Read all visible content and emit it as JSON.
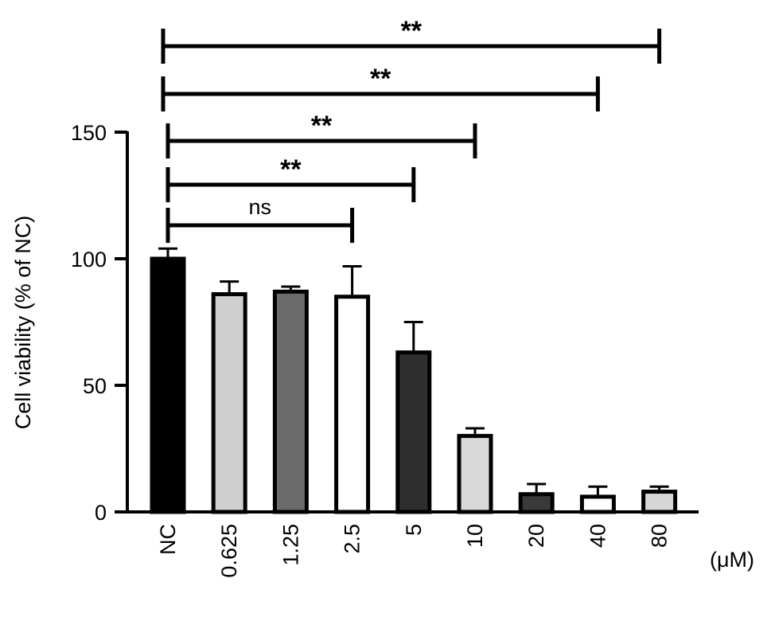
{
  "chart_data": {
    "type": "bar",
    "categories": [
      "NC",
      "0.625",
      "1.25",
      "2.5",
      "5",
      "10",
      "20",
      "40",
      "80"
    ],
    "values": [
      100,
      86,
      87,
      85,
      63,
      30,
      7,
      6,
      8
    ],
    "errors": [
      4,
      5,
      2,
      12,
      12,
      3,
      4,
      4,
      2
    ],
    "fill_colors": [
      "#000000",
      "#cfcfcf",
      "#6b6b6b",
      "#ffffff",
      "#2e2e2e",
      "#d9d9d9",
      "#3a3a3a",
      "#ffffff",
      "#d6d6d6"
    ],
    "ylabel": "Cell viability (% of NC)",
    "x_unit": "(μM)",
    "ylim": [
      0,
      150
    ],
    "yticks": [
      "0",
      "50",
      "100",
      "150"
    ],
    "significance": [
      {
        "from": "NC",
        "to": "2.5",
        "label": "ns"
      },
      {
        "from": "NC",
        "to": "5",
        "label": "**"
      },
      {
        "from": "NC",
        "to": "10",
        "label": "**"
      },
      {
        "from": "NC",
        "to": "40",
        "label": "**"
      },
      {
        "from": "NC",
        "to": "80",
        "label": "**"
      }
    ]
  }
}
